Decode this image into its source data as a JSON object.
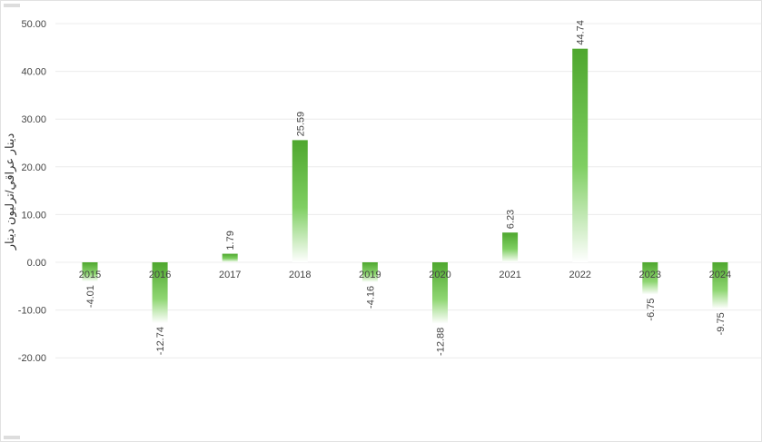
{
  "chart_data": {
    "type": "bar",
    "title": "",
    "xlabel": "",
    "ylabel": "دينار عراقي/ترليون دينار",
    "categories": [
      "2015",
      "2016",
      "2017",
      "2018",
      "2019",
      "2020",
      "2021",
      "2022",
      "2023",
      "2024"
    ],
    "values": [
      -4.01,
      -12.74,
      1.79,
      25.59,
      -4.16,
      -12.88,
      6.23,
      44.74,
      -6.75,
      -9.75
    ],
    "data_labels": [
      "-4.01",
      "-12.74",
      "1.79",
      "25.59",
      "-4.16",
      "-12.88",
      "6.23",
      "44.74",
      "-6.75",
      "-9.75"
    ],
    "ylim": [
      -20,
      50
    ],
    "yticks": [
      "-20.00",
      "-10.00",
      "0.00",
      "10.00",
      "20.00",
      "30.00",
      "40.00",
      "50.00"
    ],
    "ytick_values": [
      -20,
      -10,
      0,
      10,
      20,
      30,
      40,
      50
    ],
    "grid": true,
    "legend": "none",
    "bar_color": "#4ea72e"
  }
}
